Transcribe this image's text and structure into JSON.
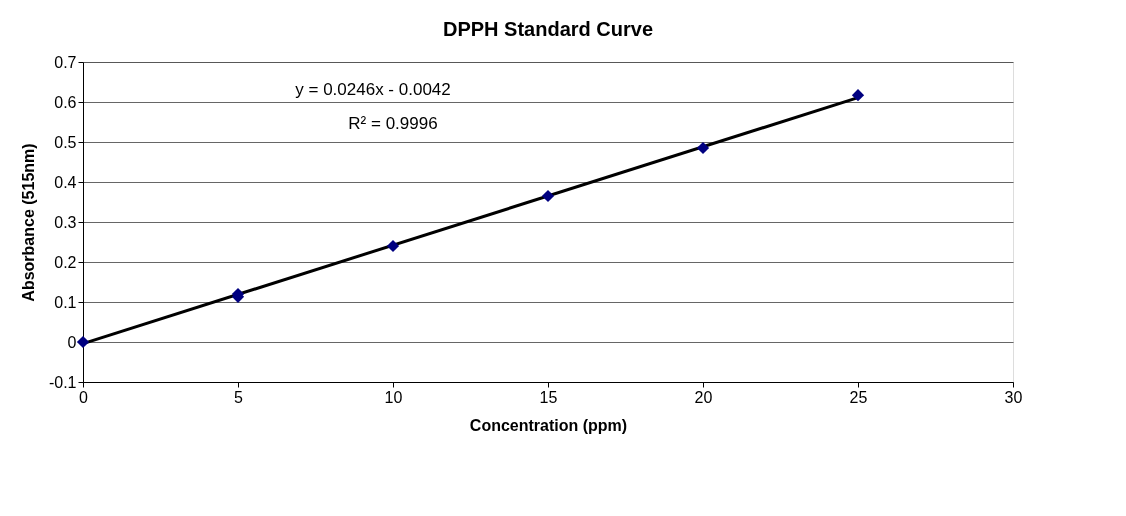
{
  "chart_data": {
    "type": "scatter",
    "title": "DPPH Standard Curve",
    "xlabel": "Concentration (ppm)",
    "ylabel": "Absorbance (515nm)",
    "x": [
      0,
      5,
      5,
      10,
      15,
      20,
      25
    ],
    "series": [
      {
        "type": "line",
        "color": "#000000",
        "marker": "none",
        "line_style": "solid",
        "x": [
          0,
          25
        ],
        "values": [
          -0.004,
          0.611
        ]
      },
      {
        "type": "scatter",
        "color": "#000080",
        "marker": "diamond",
        "values": [
          0,
          0.113,
          0.12,
          0.24,
          0.365,
          0.485,
          0.617
        ]
      }
    ],
    "annotations": [
      "y = 0.0246x - 0.0042",
      "R² = 0.9996"
    ],
    "xlim": [
      0,
      30
    ],
    "xticks": [
      0,
      5,
      10,
      15,
      20,
      25,
      30
    ],
    "ylim": [
      -0.1,
      0.7
    ],
    "yticks": [
      -0.1,
      0,
      0.1,
      0.2,
      0.3,
      0.4,
      0.5,
      0.6,
      0.7
    ],
    "grid": "y"
  }
}
